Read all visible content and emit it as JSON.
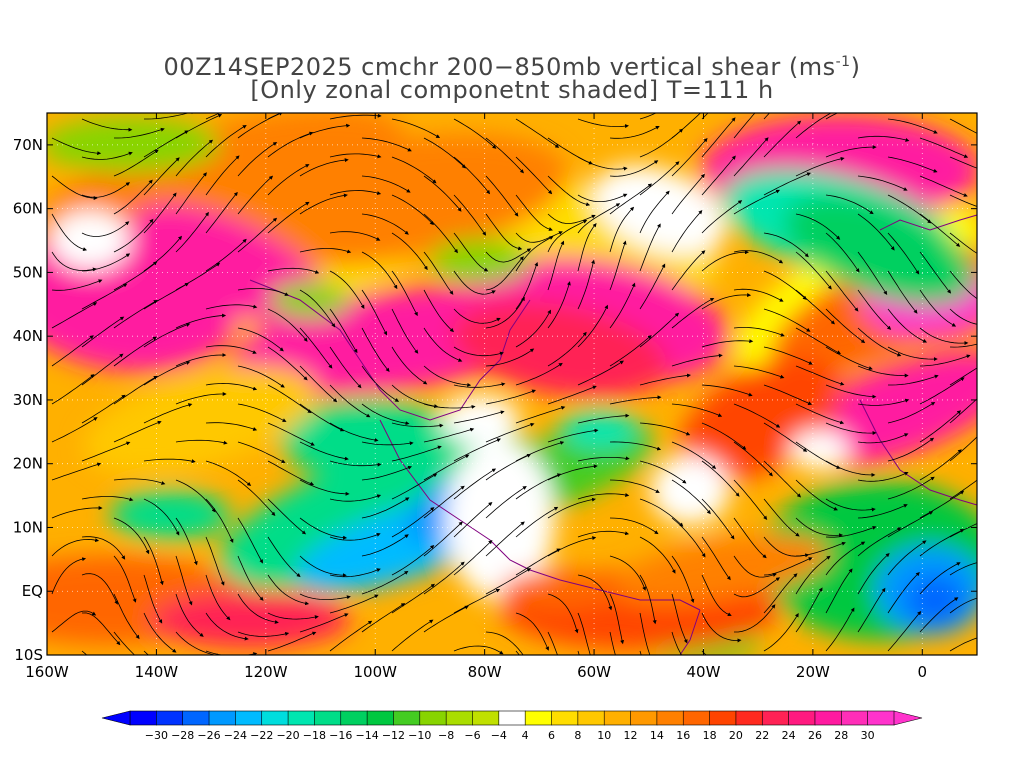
{
  "title": {
    "line1_prefix": "00Z14SEP2025 cmchr 200−850mb vertical shear (ms",
    "line1_unit_sup": "-1",
    "line1_suffix": ")",
    "line2": "[Only zonal componetnt shaded] T=111 h"
  },
  "map": {
    "lon_range": [
      -160,
      10
    ],
    "lat_range": [
      -10,
      75
    ],
    "lat_ticks": [
      {
        "value": 70,
        "label": "70N"
      },
      {
        "value": 60,
        "label": "60N"
      },
      {
        "value": 50,
        "label": "50N"
      },
      {
        "value": 40,
        "label": "40N"
      },
      {
        "value": 30,
        "label": "30N"
      },
      {
        "value": 20,
        "label": "20N"
      },
      {
        "value": 10,
        "label": "10N"
      },
      {
        "value": 0,
        "label": "EQ"
      },
      {
        "value": -10,
        "label": "10S"
      }
    ],
    "lon_ticks": [
      {
        "value": -160,
        "label": "160W"
      },
      {
        "value": -140,
        "label": "140W"
      },
      {
        "value": -120,
        "label": "120W"
      },
      {
        "value": -100,
        "label": "100W"
      },
      {
        "value": -80,
        "label": "80W"
      },
      {
        "value": -60,
        "label": "60W"
      },
      {
        "value": -40,
        "label": "40W"
      },
      {
        "value": -20,
        "label": "20W"
      },
      {
        "value": 0,
        "label": "0"
      }
    ],
    "field": "zonal component of 200-850mb vertical shear",
    "overlay": "shear streamlines with arrows",
    "gridlines": true
  },
  "colorbar": {
    "labels": [
      "-30",
      "-28",
      "-26",
      "-24",
      "-22",
      "-20",
      "-18",
      "-16",
      "-14",
      "-12",
      "-10",
      "-8",
      "-6",
      "-4",
      "4",
      "6",
      "8",
      "10",
      "12",
      "14",
      "16",
      "18",
      "20",
      "22",
      "24",
      "26",
      "28",
      "30"
    ],
    "colors": [
      "#0000ff",
      "#0033ff",
      "#0066ff",
      "#0099ff",
      "#00bbff",
      "#00dddd",
      "#00e6b0",
      "#00dd88",
      "#00d060",
      "#00c840",
      "#44cc22",
      "#88d400",
      "#aadd00",
      "#c0e000",
      "#ffffff",
      "#ffff00",
      "#ffdd00",
      "#ffc800",
      "#ffb000",
      "#ff9900",
      "#ff8000",
      "#ff6600",
      "#ff4400",
      "#ff2a1f",
      "#ff2255",
      "#ff1a80",
      "#ff1aa0",
      "#ff2eb8",
      "#ff33cc"
    ]
  }
}
